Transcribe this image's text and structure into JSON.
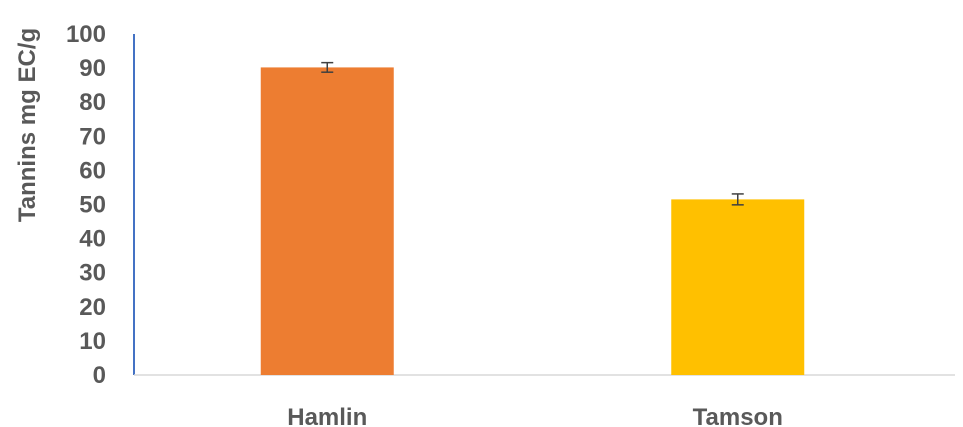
{
  "chart_data": {
    "type": "bar",
    "title": "",
    "xlabel": "",
    "ylabel": "Tannins mg EC/g",
    "ylim": [
      0,
      100
    ],
    "yticks": [
      0,
      10,
      20,
      30,
      40,
      50,
      60,
      70,
      80,
      90,
      100
    ],
    "categories": [
      "Hamlin",
      "Tamson"
    ],
    "values": [
      90.2,
      51.5
    ],
    "errors": [
      1.4,
      1.6
    ],
    "colors": [
      "#ED7D31",
      "#FFC000"
    ],
    "grid": false,
    "legend": "none"
  }
}
